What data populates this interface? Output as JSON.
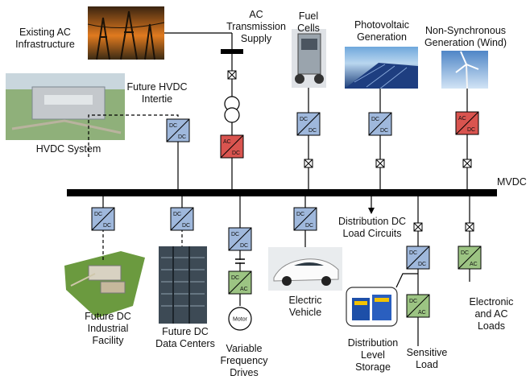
{
  "labels": {
    "ac_infra": [
      "Existing AC",
      "Infrastructure"
    ],
    "ac_transmission": [
      "AC",
      "Transmission",
      "Supply"
    ],
    "fuel_cells": [
      "Fuel",
      "Cells"
    ],
    "photovoltaic": [
      "Photovoltaic",
      "Generation"
    ],
    "wind": [
      "Non-Synchronous",
      "Generation (Wind)"
    ],
    "hvdc_intertie": [
      "Future HVDC",
      "Intertie"
    ],
    "hvdc_system": [
      "HVDC System"
    ],
    "mvdc": [
      "MVDC"
    ],
    "dist_dc_load": [
      "Distribution DC",
      "Load Circuits"
    ],
    "industrial": [
      "Future DC",
      "Industrial",
      "Facility"
    ],
    "data_centers": [
      "Future DC",
      "Data Centers"
    ],
    "vfd": [
      "Variable",
      "Frequency",
      "Drives"
    ],
    "ev": [
      "Electric",
      "Vehicle"
    ],
    "storage": [
      "Distribution",
      "Level",
      "Storage"
    ],
    "sensitive": [
      "Sensitive",
      "Load"
    ],
    "electronic": [
      "Electronic",
      "and AC",
      "Loads"
    ],
    "motor": "Motor"
  },
  "converters": {
    "dc": [
      "DC",
      "DC"
    ],
    "ac_dc": [
      "AC",
      "DC"
    ],
    "dc_ac": [
      "DC",
      "AC"
    ]
  },
  "colors": {
    "dc_dc": "#9fb8dc",
    "ac_dc": "#d9544f",
    "dc_ac": "#9cc483",
    "bus": "#000000"
  }
}
